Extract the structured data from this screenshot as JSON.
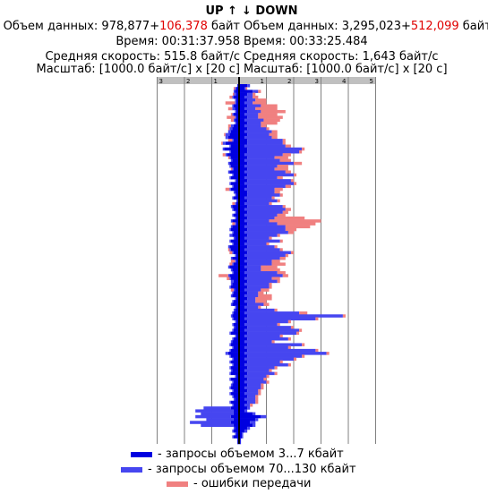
{
  "header": {
    "up_label": "UP ↑",
    "down_label": "↓ DOWN",
    "up": {
      "volume_label": "Объем данных: ",
      "volume_total": "978,877",
      "volume_plus": "+",
      "volume_errors": "106,378",
      "volume_unit": " байт",
      "time": "Время: 00:31:37.958",
      "speed": "Средняя скорость: 515.8 байт/с",
      "scale": "Масштаб: [1000.0 байт/с] x [20 с]"
    },
    "down": {
      "volume_label": "Объем данных: ",
      "volume_total": "3,295,023",
      "volume_plus": "+",
      "volume_errors": "512,099",
      "volume_unit": " байт",
      "time": "Время: 00:33:25.484",
      "speed": "Средняя скорость: 1,643 байт/с",
      "scale": "Масштаб: [1000.0 байт/с] x [20 с]"
    }
  },
  "colors": {
    "small": "#0000e0",
    "large": "#4646f0",
    "errors": "#f08080",
    "grid": "#808080",
    "ruler": "#c0c0c0",
    "axis": "#000000",
    "red_text": "#e00000"
  },
  "legend": {
    "small_label": "- запросы объемом 3...7 кбайт",
    "large_label": "- запросы объемом 70...130 кбайт",
    "errors_label": "- ошибки передачи"
  },
  "chart_data": {
    "type": "bar",
    "orientation": "horizontal, mirrored (UP to left, DOWN to right)",
    "x_unit": "1000.0 байт/с",
    "y_unit": "20 с per row",
    "up_ticks": [
      "3",
      "2",
      "1"
    ],
    "down_ticks": [
      "1",
      "2",
      "3",
      "4",
      "5"
    ],
    "up_range": [
      0,
      3
    ],
    "down_range": [
      0,
      5
    ],
    "series_order": [
      "small",
      "large",
      "errors"
    ],
    "up": [
      [
        0.05,
        0.02,
        0
      ],
      [
        0.1,
        0.05,
        0.05
      ],
      [
        0.15,
        0.05,
        0
      ],
      [
        0.1,
        0.08,
        0.05
      ],
      [
        0.2,
        0.05,
        0.1
      ],
      [
        0.1,
        0.05,
        0
      ],
      [
        0.1,
        0.05,
        0.35
      ],
      [
        0.2,
        0.05,
        0
      ],
      [
        0.15,
        0.1,
        0.15
      ],
      [
        0.1,
        0.05,
        0
      ],
      [
        0.2,
        0.05,
        0.05
      ],
      [
        0.1,
        0.05,
        0.3
      ],
      [
        0.15,
        0.05,
        0.1
      ],
      [
        0.1,
        0.05,
        0
      ],
      [
        0.2,
        0.1,
        0.1
      ],
      [
        0.25,
        0.1,
        0.05
      ],
      [
        0.3,
        0.1,
        0
      ],
      [
        0.35,
        0.15,
        0.05
      ],
      [
        0.4,
        0.1,
        0
      ],
      [
        0.2,
        0.05,
        0.15
      ],
      [
        0.5,
        0.1,
        0.05
      ],
      [
        0.3,
        0.05,
        0
      ],
      [
        0.55,
        0.05,
        0
      ],
      [
        0.3,
        0.05,
        0
      ],
      [
        0.45,
        0.05,
        0.1
      ],
      [
        0.3,
        0.05,
        0.05
      ],
      [
        0.25,
        0.05,
        0
      ],
      [
        0.35,
        0.05,
        0
      ],
      [
        0.3,
        0.05,
        0
      ],
      [
        0.2,
        0.05,
        0.05
      ],
      [
        0.35,
        0.05,
        0
      ],
      [
        0.2,
        0.05,
        0
      ],
      [
        0.3,
        0.05,
        0
      ],
      [
        0.1,
        0.05,
        0
      ],
      [
        0.3,
        0.05,
        0
      ],
      [
        0.2,
        0.05,
        0
      ],
      [
        0.3,
        0.05,
        0.15
      ],
      [
        0.15,
        0.05,
        0
      ],
      [
        0.1,
        0.05,
        0
      ],
      [
        0.2,
        0.05,
        0
      ],
      [
        0.05,
        0.05,
        0
      ],
      [
        0.1,
        0.05,
        0.1
      ],
      [
        0.25,
        0.05,
        0
      ],
      [
        0.2,
        0.05,
        0
      ],
      [
        0.1,
        0.05,
        0
      ],
      [
        0.2,
        0.05,
        0
      ],
      [
        0.1,
        0.05,
        0
      ],
      [
        0.25,
        0.05,
        0
      ],
      [
        0.1,
        0.05,
        0.1
      ],
      [
        0.25,
        0.05,
        0
      ],
      [
        0.3,
        0.05,
        0
      ],
      [
        0.2,
        0.05,
        0
      ],
      [
        0.25,
        0.1,
        0
      ],
      [
        0.15,
        0.05,
        0
      ],
      [
        0.3,
        0.05,
        0
      ],
      [
        0.2,
        0.05,
        0
      ],
      [
        0.35,
        0.05,
        0
      ],
      [
        0.3,
        0.05,
        0.05
      ],
      [
        0.2,
        0.05,
        0.1
      ],
      [
        0.1,
        0.05,
        0
      ],
      [
        0.25,
        0.05,
        0
      ],
      [
        0.1,
        0.05,
        0.15
      ],
      [
        0.2,
        0.05,
        0.1
      ],
      [
        0.35,
        0.05,
        0
      ],
      [
        0.25,
        0.05,
        0
      ],
      [
        0.2,
        0.05,
        0
      ],
      [
        0.35,
        0.05,
        0.35
      ],
      [
        0.3,
        0.05,
        0.1
      ],
      [
        0.2,
        0.1,
        0
      ],
      [
        0.25,
        0.05,
        0
      ],
      [
        0.3,
        0.05,
        0
      ],
      [
        0.15,
        0.05,
        0.1
      ],
      [
        0.2,
        0.05,
        0
      ],
      [
        0.25,
        0.05,
        0
      ],
      [
        0.1,
        0.05,
        0
      ],
      [
        0.2,
        0.05,
        0
      ],
      [
        0.25,
        0.05,
        0
      ],
      [
        0.1,
        0.05,
        0
      ],
      [
        0.15,
        0.05,
        0
      ],
      [
        0.2,
        0.05,
        0
      ],
      [
        0.25,
        0.05,
        0
      ],
      [
        0.2,
        0.05,
        0
      ],
      [
        0.1,
        0.05,
        0
      ],
      [
        0.2,
        0.05,
        0
      ],
      [
        0.15,
        0.05,
        0
      ],
      [
        0.2,
        0.05,
        0
      ],
      [
        0.3,
        0.05,
        0
      ],
      [
        0.1,
        0.05,
        0
      ],
      [
        0.2,
        0.05,
        0
      ],
      [
        0.25,
        0.05,
        0
      ],
      [
        0.3,
        0.05,
        0
      ],
      [
        0.2,
        0.05,
        0
      ],
      [
        0.3,
        0.05,
        0
      ],
      [
        0.4,
        0.1,
        0
      ],
      [
        0.3,
        0.05,
        0
      ],
      [
        0.2,
        0.05,
        0
      ],
      [
        0.3,
        0.05,
        0
      ],
      [
        0.2,
        0.05,
        0
      ],
      [
        0.3,
        0.05,
        0
      ],
      [
        0.25,
        0.05,
        0
      ],
      [
        0.3,
        0.05,
        0
      ],
      [
        0.1,
        0.05,
        0
      ],
      [
        0.3,
        0.05,
        0
      ],
      [
        0.2,
        0.05,
        0
      ],
      [
        0.25,
        0.05,
        0
      ],
      [
        0.3,
        0.05,
        0
      ],
      [
        0.2,
        0.05,
        0
      ],
      [
        0.3,
        0.05,
        0
      ],
      [
        0.2,
        0.05,
        0
      ],
      [
        0.15,
        0.05,
        0
      ],
      [
        0.3,
        0.05,
        0
      ],
      [
        0.2,
        0.05,
        0
      ],
      [
        0.3,
        1.0,
        0
      ],
      [
        0.2,
        1.4,
        0
      ],
      [
        0.2,
        1.2,
        0
      ],
      [
        0.3,
        1.3,
        0
      ],
      [
        0.2,
        1.0,
        0
      ],
      [
        0.3,
        1.5,
        0
      ],
      [
        0.2,
        1.2,
        0
      ],
      [
        0.15,
        0.05,
        0
      ],
      [
        0.2,
        0.05,
        0
      ],
      [
        0.1,
        0.05,
        0
      ],
      [
        0.2,
        0.05,
        0
      ],
      [
        0.05,
        0.02,
        0
      ],
      [
        0.05,
        0.02,
        0
      ]
    ],
    "down": [
      [
        0.3,
        0.1,
        0
      ],
      [
        0.2,
        0.05,
        0.05
      ],
      [
        0.5,
        0.2,
        0.1
      ],
      [
        0.3,
        0.2,
        0.1
      ],
      [
        0.2,
        0.3,
        0.2
      ],
      [
        0.3,
        0.3,
        0.4
      ],
      [
        0.2,
        0.3,
        0.5
      ],
      [
        0.3,
        0.5,
        0.6
      ],
      [
        0.2,
        0.4,
        0.8
      ],
      [
        0.3,
        0.5,
        0.9
      ],
      [
        0.2,
        0.5,
        0.7
      ],
      [
        0.3,
        0.4,
        0.9
      ],
      [
        0.2,
        0.7,
        0.6
      ],
      [
        0.3,
        0.5,
        0.6
      ],
      [
        0.2,
        0.6,
        0.2
      ],
      [
        0.3,
        0.7,
        0.1
      ],
      [
        0.2,
        1.0,
        0.2
      ],
      [
        0.3,
        0.8,
        0.3
      ],
      [
        0.2,
        1.0,
        0.2
      ],
      [
        0.3,
        1.3,
        0.1
      ],
      [
        0.3,
        1.3,
        0.1
      ],
      [
        0.2,
        1.5,
        0.2
      ],
      [
        0.3,
        2.0,
        0.1
      ],
      [
        0.3,
        1.9,
        0.1
      ],
      [
        0.2,
        1.4,
        0.3
      ],
      [
        0.3,
        1.0,
        0.5
      ],
      [
        0.2,
        1.3,
        0.4
      ],
      [
        0.3,
        1.7,
        0.3
      ],
      [
        0.2,
        1.2,
        0.4
      ],
      [
        0.3,
        1.0,
        0.5
      ],
      [
        0.2,
        1.5,
        0.2
      ],
      [
        0.3,
        1.7,
        0.1
      ],
      [
        0.2,
        1.2,
        0.2
      ],
      [
        0.3,
        1.6,
        0.1
      ],
      [
        0.2,
        1.8,
        0.1
      ],
      [
        0.3,
        1.4,
        0.2
      ],
      [
        0.2,
        1.1,
        0.3
      ],
      [
        0.3,
        1.0,
        0.2
      ],
      [
        0.3,
        1.2,
        0.1
      ],
      [
        0.2,
        1.0,
        0.1
      ],
      [
        0.3,
        1.1,
        0.1
      ],
      [
        0.2,
        0.9,
        0.1
      ],
      [
        0.3,
        1.3,
        0.1
      ],
      [
        0.2,
        1.5,
        0.2
      ],
      [
        0.3,
        1.3,
        0.2
      ],
      [
        0.2,
        1.2,
        0.3
      ],
      [
        0.3,
        1.0,
        1.1
      ],
      [
        0.2,
        0.9,
        1.9
      ],
      [
        0.3,
        1.1,
        1.4
      ],
      [
        0.2,
        1.5,
        0.9
      ],
      [
        0.3,
        1.4,
        0.4
      ],
      [
        0.2,
        1.6,
        0.2
      ],
      [
        0.3,
        1.1,
        0.1
      ],
      [
        0.2,
        0.9,
        0.1
      ],
      [
        0.3,
        1.2,
        0.1
      ],
      [
        0.2,
        0.8,
        0.1
      ],
      [
        0.3,
        1.0,
        0.1
      ],
      [
        0.2,
        1.3,
        0.1
      ],
      [
        0.3,
        1.6,
        0.1
      ],
      [
        0.2,
        1.5,
        0.1
      ],
      [
        0.3,
        1.2,
        0.2
      ],
      [
        0.2,
        1.0,
        0.3
      ],
      [
        0.3,
        0.9,
        0.5
      ],
      [
        0.2,
        0.6,
        0.6
      ],
      [
        0.3,
        0.5,
        0.7
      ],
      [
        0.2,
        1.2,
        0.3
      ],
      [
        0.3,
        1.3,
        0.2
      ],
      [
        0.2,
        1.0,
        0.3
      ],
      [
        0.3,
        1.1,
        0.1
      ],
      [
        0.2,
        0.9,
        0.1
      ],
      [
        0.3,
        0.8,
        0.1
      ],
      [
        0.2,
        0.6,
        0.3
      ],
      [
        0.3,
        0.4,
        0.2
      ],
      [
        0.2,
        0.5,
        0.5
      ],
      [
        0.3,
        0.3,
        0.6
      ],
      [
        0.2,
        0.4,
        0.4
      ],
      [
        0.3,
        0.6,
        0.2
      ],
      [
        0.2,
        0.5,
        0.1
      ],
      [
        0.3,
        1.0,
        0.1
      ],
      [
        0.2,
        2.0,
        0.3
      ],
      [
        0.3,
        3.5,
        0.1
      ],
      [
        0.2,
        2.6,
        0.1
      ],
      [
        0.3,
        1.5,
        0.1
      ],
      [
        0.2,
        1.2,
        0.1
      ],
      [
        0.3,
        1.6,
        0.1
      ],
      [
        0.2,
        2.0,
        0.1
      ],
      [
        0.3,
        1.8,
        0.1
      ],
      [
        0.2,
        1.3,
        0.1
      ],
      [
        0.3,
        1.5,
        0.1
      ],
      [
        0.2,
        1.0,
        0.1
      ],
      [
        0.3,
        2.0,
        0.1
      ],
      [
        0.2,
        1.6,
        0.1
      ],
      [
        0.3,
        2.5,
        0.1
      ],
      [
        0.2,
        3.0,
        0.1
      ],
      [
        0.3,
        2.0,
        0.1
      ],
      [
        0.2,
        1.8,
        0.1
      ],
      [
        0.3,
        1.2,
        0.1
      ],
      [
        0.2,
        1.6,
        0.1
      ],
      [
        0.3,
        1.0,
        0.1
      ],
      [
        0.2,
        0.9,
        0.1
      ],
      [
        0.3,
        1.0,
        0.1
      ],
      [
        0.2,
        0.8,
        0.1
      ],
      [
        0.3,
        0.6,
        0.1
      ],
      [
        0.2,
        0.8,
        0.1
      ],
      [
        0.3,
        0.5,
        0.1
      ],
      [
        0.2,
        0.6,
        0.1
      ],
      [
        0.3,
        0.4,
        0.1
      ],
      [
        0.2,
        0.5,
        0.1
      ],
      [
        0.3,
        0.3,
        0.1
      ],
      [
        0.2,
        0.4,
        0.1
      ],
      [
        0.3,
        0.3,
        0.1
      ],
      [
        0.2,
        0.2,
        0.1
      ],
      [
        0.3,
        0.1,
        0
      ],
      [
        0.2,
        0.1,
        0
      ],
      [
        0.5,
        0.1,
        0
      ],
      [
        0.8,
        0.2,
        0
      ],
      [
        0.6,
        0.1,
        0
      ],
      [
        0.4,
        0.2,
        0
      ],
      [
        0.5,
        0.1,
        0
      ],
      [
        0.3,
        0.1,
        0
      ],
      [
        0.2,
        0.1,
        0
      ],
      [
        0.1,
        0.05,
        0
      ],
      [
        0.1,
        0.05,
        0
      ],
      [
        0.05,
        0.02,
        0
      ],
      [
        0.05,
        0.02,
        0
      ]
    ]
  }
}
